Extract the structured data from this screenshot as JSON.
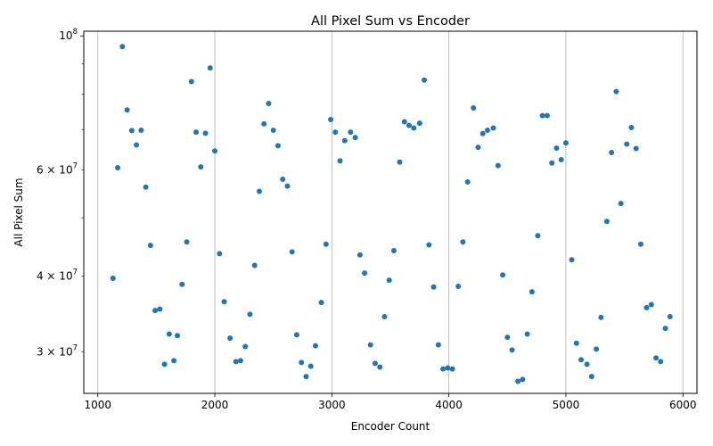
{
  "chart_data": {
    "type": "scatter",
    "title": "All Pixel Sum vs Encoder",
    "xlabel": "Encoder Count",
    "ylabel": "All Pixel Sum",
    "xlim": [
      880,
      6120
    ],
    "ylim": [
      25600000,
      101800000
    ],
    "yscale": "log",
    "grid": "x-only",
    "marker_color": "#1f77b4",
    "x_ticks": [
      {
        "value": 1000,
        "label": "1000"
      },
      {
        "value": 2000,
        "label": "2000"
      },
      {
        "value": 3000,
        "label": "3000"
      },
      {
        "value": 4000,
        "label": "4000"
      },
      {
        "value": 5000,
        "label": "5000"
      },
      {
        "value": 6000,
        "label": "6000"
      }
    ],
    "y_major_ticks": [
      {
        "value": 100000000,
        "label": "10^8"
      }
    ],
    "y_minor_ticks": [
      {
        "value": 30000000,
        "label": "3 × 10^7"
      },
      {
        "value": 40000000,
        "label": "4 × 10^7"
      },
      {
        "value": 50000000,
        "label": ""
      },
      {
        "value": 60000000,
        "label": "6 × 10^7"
      },
      {
        "value": 70000000,
        "label": ""
      },
      {
        "value": 80000000,
        "label": ""
      },
      {
        "value": 90000000,
        "label": ""
      }
    ],
    "series": [
      {
        "points": [
          [
            1130,
            39700000
          ],
          [
            1170,
            60500000
          ],
          [
            1210,
            96000000
          ],
          [
            1250,
            75400000
          ],
          [
            1290,
            69700000
          ],
          [
            1330,
            66000000
          ],
          [
            1370,
            69800000
          ],
          [
            1410,
            56200000
          ],
          [
            1450,
            45000000
          ],
          [
            1490,
            35100000
          ],
          [
            1530,
            35300000
          ],
          [
            1570,
            28600000
          ],
          [
            1610,
            32100000
          ],
          [
            1650,
            29000000
          ],
          [
            1680,
            31900000
          ],
          [
            1720,
            38800000
          ],
          [
            1760,
            45600000
          ],
          [
            1800,
            84000000
          ],
          [
            1840,
            69300000
          ],
          [
            1880,
            60700000
          ],
          [
            1920,
            69000000
          ],
          [
            1960,
            88500000
          ],
          [
            2000,
            64500000
          ],
          [
            2040,
            43600000
          ],
          [
            2080,
            36300000
          ],
          [
            2130,
            31600000
          ],
          [
            2180,
            28900000
          ],
          [
            2220,
            29000000
          ],
          [
            2260,
            30600000
          ],
          [
            2300,
            34600000
          ],
          [
            2340,
            41700000
          ],
          [
            2380,
            55300000
          ],
          [
            2420,
            71500000
          ],
          [
            2460,
            77300000
          ],
          [
            2500,
            69800000
          ],
          [
            2540,
            65800000
          ],
          [
            2580,
            57900000
          ],
          [
            2620,
            56400000
          ],
          [
            2660,
            43900000
          ],
          [
            2700,
            32000000
          ],
          [
            2740,
            28800000
          ],
          [
            2780,
            27300000
          ],
          [
            2820,
            28400000
          ],
          [
            2860,
            30700000
          ],
          [
            2910,
            36200000
          ],
          [
            2950,
            45200000
          ],
          [
            2990,
            72700000
          ],
          [
            3030,
            69300000
          ],
          [
            3070,
            62100000
          ],
          [
            3110,
            67100000
          ],
          [
            3160,
            69300000
          ],
          [
            3200,
            67900000
          ],
          [
            3240,
            43400000
          ],
          [
            3280,
            40500000
          ],
          [
            3330,
            30800000
          ],
          [
            3370,
            28700000
          ],
          [
            3410,
            28300000
          ],
          [
            3450,
            34300000
          ],
          [
            3490,
            39400000
          ],
          [
            3530,
            44100000
          ],
          [
            3580,
            61800000
          ],
          [
            3620,
            72100000
          ],
          [
            3660,
            71100000
          ],
          [
            3700,
            70400000
          ],
          [
            3750,
            71700000
          ],
          [
            3790,
            84500000
          ],
          [
            3830,
            45100000
          ],
          [
            3870,
            38400000
          ],
          [
            3910,
            30800000
          ],
          [
            3950,
            28100000
          ],
          [
            3990,
            28200000
          ],
          [
            4030,
            28100000
          ],
          [
            4080,
            38500000
          ],
          [
            4120,
            45600000
          ],
          [
            4160,
            57300000
          ],
          [
            4210,
            76000000
          ],
          [
            4250,
            65400000
          ],
          [
            4290,
            68900000
          ],
          [
            4330,
            69800000
          ],
          [
            4380,
            70400000
          ],
          [
            4420,
            61000000
          ],
          [
            4460,
            40200000
          ],
          [
            4500,
            31700000
          ],
          [
            4540,
            30200000
          ],
          [
            4590,
            26800000
          ],
          [
            4630,
            27000000
          ],
          [
            4670,
            32100000
          ],
          [
            4710,
            37700000
          ],
          [
            4760,
            46700000
          ],
          [
            4800,
            73800000
          ],
          [
            4840,
            73800000
          ],
          [
            4880,
            61600000
          ],
          [
            4920,
            65200000
          ],
          [
            4960,
            62400000
          ],
          [
            5000,
            66500000
          ],
          [
            5050,
            42600000
          ],
          [
            5090,
            31000000
          ],
          [
            5130,
            29100000
          ],
          [
            5180,
            28600000
          ],
          [
            5220,
            27300000
          ],
          [
            5260,
            30300000
          ],
          [
            5300,
            34200000
          ],
          [
            5350,
            49300000
          ],
          [
            5390,
            64100000
          ],
          [
            5430,
            80900000
          ],
          [
            5470,
            52800000
          ],
          [
            5520,
            66200000
          ],
          [
            5560,
            70500000
          ],
          [
            5600,
            65100000
          ],
          [
            5640,
            45200000
          ],
          [
            5690,
            35500000
          ],
          [
            5730,
            35900000
          ],
          [
            5770,
            29300000
          ],
          [
            5810,
            28900000
          ],
          [
            5850,
            32800000
          ],
          [
            5890,
            34300000
          ]
        ]
      }
    ]
  }
}
